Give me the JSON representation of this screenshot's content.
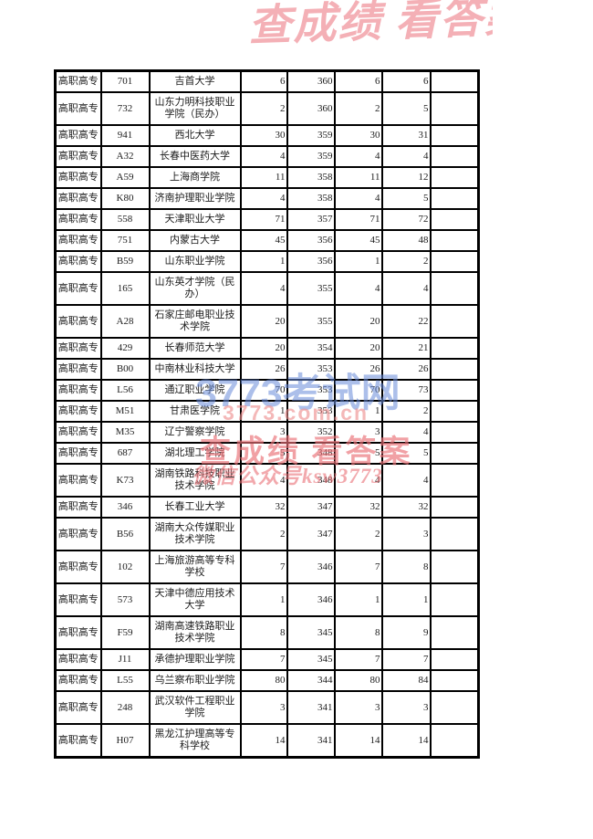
{
  "page": {
    "background": "#ffffff"
  },
  "table": {
    "col_names": [
      "cell-category",
      "cell-school-code",
      "cell-school-name",
      "cell-num-1",
      "cell-score",
      "cell-num-2",
      "cell-num-3",
      "cell-blank"
    ],
    "rows": [
      [
        "高职高专",
        "701",
        "吉首大学",
        "6",
        "360",
        "6",
        "6",
        ""
      ],
      [
        "高职高专",
        "732",
        "山东力明科技职业学院（民办）",
        "2",
        "360",
        "2",
        "5",
        ""
      ],
      [
        "高职高专",
        "941",
        "西北大学",
        "30",
        "359",
        "30",
        "31",
        ""
      ],
      [
        "高职高专",
        "A32",
        "长春中医药大学",
        "4",
        "359",
        "4",
        "4",
        ""
      ],
      [
        "高职高专",
        "A59",
        "上海商学院",
        "11",
        "358",
        "11",
        "12",
        ""
      ],
      [
        "高职高专",
        "K80",
        "济南护理职业学院",
        "4",
        "358",
        "4",
        "5",
        ""
      ],
      [
        "高职高专",
        "558",
        "天津职业大学",
        "71",
        "357",
        "71",
        "72",
        ""
      ],
      [
        "高职高专",
        "751",
        "内蒙古大学",
        "45",
        "356",
        "45",
        "48",
        ""
      ],
      [
        "高职高专",
        "B59",
        "山东职业学院",
        "1",
        "356",
        "1",
        "2",
        ""
      ],
      [
        "高职高专",
        "165",
        "山东英才学院（民办）",
        "4",
        "355",
        "4",
        "4",
        ""
      ],
      [
        "高职高专",
        "A28",
        "石家庄邮电职业技术学院",
        "20",
        "355",
        "20",
        "22",
        ""
      ],
      [
        "高职高专",
        "429",
        "长春师范大学",
        "20",
        "354",
        "20",
        "21",
        ""
      ],
      [
        "高职高专",
        "B00",
        "中南林业科技大学",
        "26",
        "353",
        "26",
        "26",
        ""
      ],
      [
        "高职高专",
        "L56",
        "通辽职业学院",
        "70",
        "353",
        "70",
        "73",
        ""
      ],
      [
        "高职高专",
        "M51",
        "甘肃医学院",
        "1",
        "353",
        "1",
        "2",
        ""
      ],
      [
        "高职高专",
        "M35",
        "辽宁警察学院",
        "3",
        "352",
        "3",
        "4",
        ""
      ],
      [
        "高职高专",
        "687",
        "湖北理工学院",
        "5",
        "348",
        "5",
        "5",
        ""
      ],
      [
        "高职高专",
        "K73",
        "湖南铁路科技职业技术学院",
        "4",
        "348",
        "4",
        "4",
        ""
      ],
      [
        "高职高专",
        "346",
        "长春工业大学",
        "32",
        "347",
        "32",
        "32",
        ""
      ],
      [
        "高职高专",
        "B56",
        "湖南大众传媒职业技术学院",
        "2",
        "347",
        "2",
        "3",
        ""
      ],
      [
        "高职高专",
        "102",
        "上海旅游高等专科学校",
        "7",
        "346",
        "7",
        "8",
        ""
      ],
      [
        "高职高专",
        "573",
        "天津中德应用技术大学",
        "1",
        "346",
        "1",
        "1",
        ""
      ],
      [
        "高职高专",
        "F59",
        "湖南高速铁路职业技术学院",
        "8",
        "345",
        "8",
        "9",
        ""
      ],
      [
        "高职高专",
        "J11",
        "承德护理职业学院",
        "7",
        "345",
        "7",
        "7",
        ""
      ],
      [
        "高职高专",
        "L55",
        "乌兰察布职业学院",
        "80",
        "344",
        "80",
        "84",
        ""
      ],
      [
        "高职高专",
        "248",
        "武汉软件工程职业学院",
        "3",
        "341",
        "3",
        "3",
        ""
      ],
      [
        "高职高专",
        "H07",
        "黑龙江护理高等专科学校",
        "14",
        "341",
        "14",
        "14",
        ""
      ]
    ]
  },
  "watermarks": {
    "site_name": "3773考试网",
    "site_url": "3773.com.cn",
    "slogan": "查成绩 看答案",
    "wechat": "微信公众号ksw3773",
    "colors": {
      "site_blue": "#688bd8",
      "url_pink": "#ee8c8c",
      "slogan_red": "#e97076",
      "top_strokes_red": "#e9626e"
    }
  }
}
